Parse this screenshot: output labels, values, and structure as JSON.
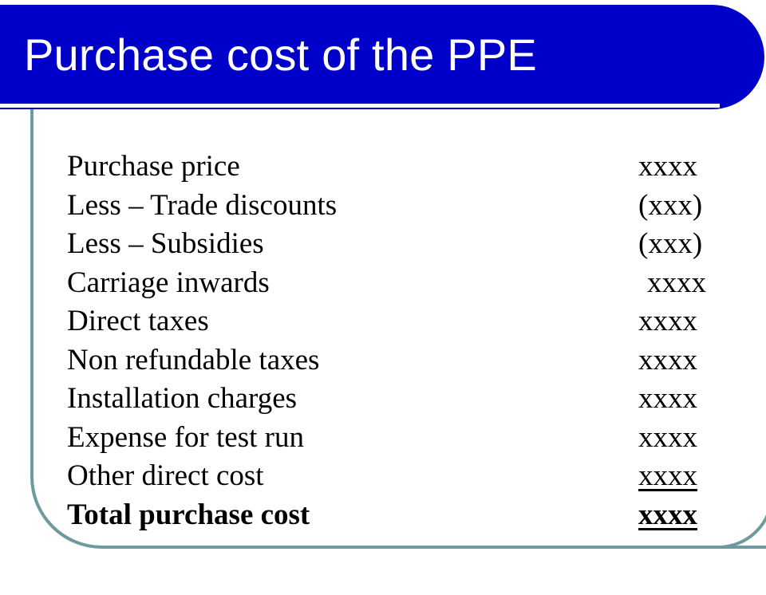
{
  "slide": {
    "title": "Purchase cost of the PPE"
  },
  "rows": [
    {
      "label": "Purchase price",
      "value": "xxxx"
    },
    {
      "label": "Less – Trade discounts",
      "value": "(xxx)"
    },
    {
      "label": "Less – Subsidies",
      "value": "(xxx)"
    },
    {
      "label": "Carriage inwards",
      "value": "xxxx"
    },
    {
      "label": "Direct taxes",
      "value": "xxxx"
    },
    {
      "label": "Non refundable taxes",
      "value": "xxxx"
    },
    {
      "label": "Installation charges",
      "value": "xxxx"
    },
    {
      "label": "Expense for test run",
      "value": "xxxx"
    },
    {
      "label": "Other direct cost",
      "value": "xxxx"
    },
    {
      "label": "Total purchase cost",
      "value": "xxxx"
    }
  ],
  "colors": {
    "title_bar": "#0000c8",
    "frame": "#6f9a9d",
    "text": "#000000"
  }
}
